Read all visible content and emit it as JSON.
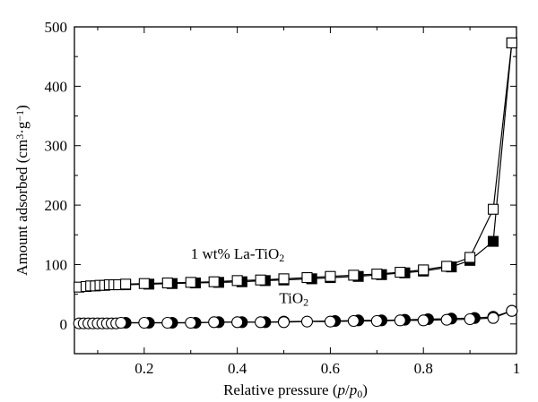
{
  "chart_data": {
    "type": "line",
    "xlabel_parts": [
      "Relative pressure (",
      "p",
      "/",
      "p",
      "0",
      ")"
    ],
    "ylabel_parts": [
      "Amount adsorbed (cm",
      "3",
      "·g",
      "−1",
      ")"
    ],
    "xlim": [
      0.05,
      1.0
    ],
    "ylim": [
      -50,
      500
    ],
    "x_ticks": [
      0.2,
      0.4,
      0.6,
      0.8,
      1.0
    ],
    "x_tick_labels": [
      "0.2",
      "0.4",
      "0.6",
      "0.8",
      "1"
    ],
    "y_ticks": [
      0,
      100,
      200,
      300,
      400,
      500
    ],
    "y_tick_labels": [
      "0",
      "100",
      "200",
      "300",
      "400",
      "500"
    ],
    "series": [
      {
        "name_parts": [
          "1 wt% La-TiO",
          "2"
        ],
        "marker": "square",
        "adsorption": {
          "x": [
            0.06,
            0.075,
            0.085,
            0.095,
            0.105,
            0.115,
            0.125,
            0.135,
            0.145,
            0.16,
            0.2,
            0.25,
            0.3,
            0.35,
            0.4,
            0.45,
            0.5,
            0.55,
            0.6,
            0.65,
            0.7,
            0.75,
            0.8,
            0.85,
            0.9,
            0.95,
            0.99
          ],
          "y": [
            62,
            63,
            64,
            64,
            65,
            65,
            66,
            66,
            66,
            67,
            68,
            69,
            70,
            71,
            73,
            74,
            76,
            78,
            80,
            82,
            84,
            87,
            91,
            97,
            112,
            193,
            473
          ]
        },
        "desorption": {
          "x": [
            0.99,
            0.95,
            0.9,
            0.86,
            0.8,
            0.76,
            0.71,
            0.66,
            0.6,
            0.56,
            0.5,
            0.46,
            0.41,
            0.36,
            0.31,
            0.26,
            0.21,
            0.16
          ],
          "y": [
            473,
            139,
            107,
            96,
            89,
            86,
            83,
            80,
            78,
            76,
            74,
            73,
            71,
            70,
            69,
            68,
            67,
            66
          ]
        }
      },
      {
        "name_parts": [
          "TiO",
          "2"
        ],
        "marker": "circle",
        "adsorption": {
          "x": [
            0.06,
            0.07,
            0.08,
            0.09,
            0.1,
            0.11,
            0.12,
            0.13,
            0.14,
            0.15,
            0.2,
            0.25,
            0.3,
            0.35,
            0.4,
            0.45,
            0.5,
            0.55,
            0.6,
            0.65,
            0.7,
            0.75,
            0.8,
            0.85,
            0.9,
            0.95,
            0.99
          ],
          "y": [
            1,
            1,
            1,
            1,
            1,
            1,
            1,
            1,
            1,
            2,
            2,
            2,
            2,
            3,
            3,
            3,
            3,
            4,
            4,
            5,
            5,
            6,
            6,
            7,
            8,
            10,
            22
          ]
        },
        "desorption": {
          "x": [
            0.99,
            0.95,
            0.91,
            0.86,
            0.81,
            0.76,
            0.71,
            0.66,
            0.61,
            0.5,
            0.46,
            0.41,
            0.36,
            0.31,
            0.26,
            0.21,
            0.16
          ],
          "y": [
            22,
            12,
            10,
            9,
            8,
            7,
            6,
            6,
            5,
            4,
            3,
            3,
            3,
            2,
            2,
            2,
            2
          ]
        }
      }
    ],
    "annotations": [
      {
        "text_parts": [
          "1 wt% La-TiO",
          "2"
        ],
        "x": 0.3,
        "y": 110
      },
      {
        "text_parts": [
          "TiO",
          "2"
        ],
        "x": 0.49,
        "y": 35
      }
    ]
  }
}
